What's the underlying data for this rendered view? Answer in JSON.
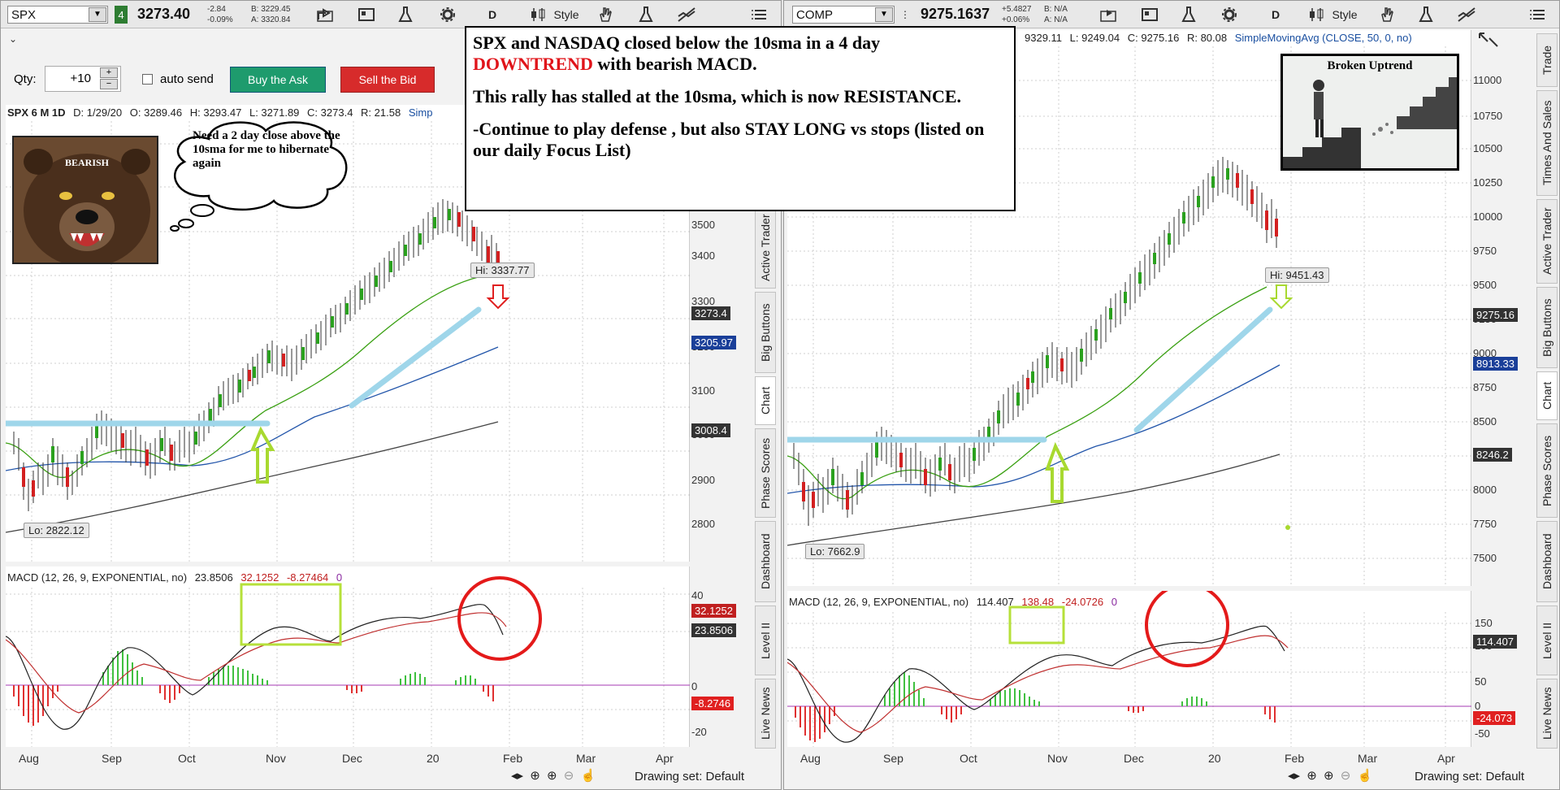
{
  "left": {
    "symbol": "SPX",
    "link_num": "4",
    "last": "3273.40",
    "change": "-2.84",
    "change_pct": "-0.09%",
    "bid": "B: 3229.45",
    "ask": "A: 3320.84",
    "period_btn": "D",
    "style_btn": "Style",
    "qty_label": "Qty:",
    "qty_value": "+10",
    "auto_send": "auto send",
    "buy_btn": "Buy the Ask",
    "sell_btn": "Sell the Bid",
    "header": {
      "label": "SPX 6 M 1D",
      "d": "D: 1/29/20",
      "o": "O: 3289.46",
      "h": "H: 3293.47",
      "l": "L: 3271.89",
      "c": "C: 3273.4",
      "r": "R: 21.58",
      "study": "Simp"
    },
    "yticks": [
      "3500",
      "3400",
      "3300",
      "3200",
      "3100",
      "3000",
      "2900",
      "2800"
    ],
    "price_badge": "3273.4",
    "sma50_badge": "3205.97",
    "sma200_badge": "3008.4",
    "hi_tag": "Hi: 3337.77",
    "lo_tag": "Lo: 2822.12",
    "macd": {
      "label": "MACD (12, 26, 9, EXPONENTIAL, no)",
      "v1": "23.8506",
      "v2": "32.1252",
      "v3": "-8.27464",
      "v4": "0",
      "yticks": [
        "40",
        "20",
        "0",
        "-20"
      ],
      "badge_avg": "32.1252",
      "badge_val": "23.8506",
      "badge_diff": "-8.2746"
    },
    "xticks": [
      "Aug",
      "Sep",
      "Oct",
      "Nov",
      "Dec",
      "20",
      "Feb",
      "Mar",
      "Apr"
    ],
    "drawing_set": "Drawing set: Default",
    "tabs": [
      "Active Trader",
      "Big Buttons",
      "Chart",
      "Phase Scores",
      "Dashboard",
      "Level II",
      "Live News"
    ],
    "bear_label": "BEARISH",
    "bubble": "Need a 2 day  close above the 10sma for me to hibernate again"
  },
  "right": {
    "symbol": "COMP",
    "last": "9275.1637",
    "change": "+5.4827",
    "change_pct": "+0.06%",
    "bid": "B: N/A",
    "ask": "A: N/A",
    "period_btn": "D",
    "style_btn": "Style",
    "header": {
      "h": "9329.11",
      "l": "L: 9249.04",
      "c": "C: 9275.16",
      "r": "R: 80.08",
      "study": "SimpleMovingAvg (CLOSE, 50, 0, no)"
    },
    "yticks": [
      "11000",
      "10750",
      "10500",
      "10250",
      "10000",
      "9750",
      "9500",
      "9250",
      "9000",
      "8750",
      "8500",
      "8250",
      "8000",
      "7750",
      "7500"
    ],
    "price_badge": "9275.16",
    "sma50_badge": "8913.33",
    "sma200_badge": "8246.2",
    "hi_tag": "Hi: 9451.43",
    "lo_tag": "Lo: 7662.9",
    "macd": {
      "label": "MACD (12, 26, 9, EXPONENTIAL, no)",
      "v1": "114.407",
      "v2": "138.48",
      "v3": "-24.0726",
      "v4": "0",
      "yticks": [
        "150",
        "100",
        "50",
        "0",
        "-50"
      ],
      "badge_val": "114.407",
      "badge_diff": "-24.073"
    },
    "xticks": [
      "Aug",
      "Sep",
      "Oct",
      "Nov",
      "Dec",
      "20",
      "Feb",
      "Mar",
      "Apr"
    ],
    "drawing_set": "Drawing set: Default",
    "tabs": [
      "Trade",
      "Times And Sales",
      "Active Trader",
      "Big Buttons",
      "Chart",
      "Phase Scores",
      "Dashboard",
      "Level II",
      "Live News"
    ],
    "broken_title": "Broken Uptrend"
  },
  "annotation": {
    "line1": "SPX and NASDAQ closed below the 10sma in a 4 day",
    "line2_red": "DOWNTREND",
    "line2_rest": " with bearish MACD.",
    "line3": "This rally has stalled at the 10sma, which is now RESISTANCE.",
    "line4": "-Continue to play defense , but also STAY LONG vs stops (listed on our daily Focus List)"
  }
}
